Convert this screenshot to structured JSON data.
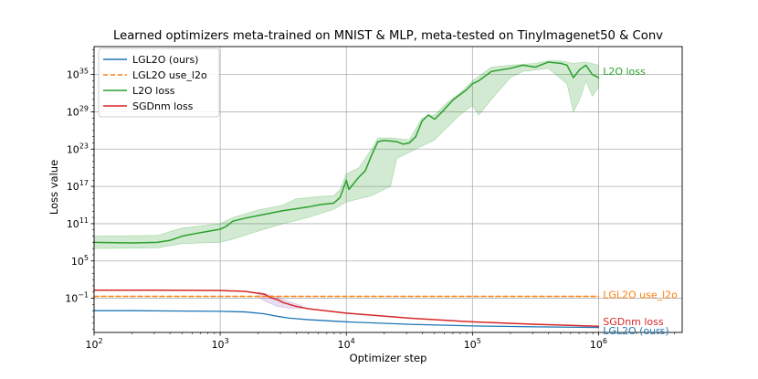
{
  "chart_data": {
    "type": "line",
    "title": "Learned optimizers meta-trained on MNIST & MLP, meta-tested on TinyImagenet50 & Conv",
    "xlabel": "Optimizer step",
    "ylabel": "Loss value",
    "xscale": "log",
    "yscale": "log",
    "xlim": [
      100,
      4600000
    ],
    "ylim_log10": [
      -6.5,
      39.5
    ],
    "grid": true,
    "legend_position": "top-left",
    "x_ticks": [
      {
        "value": 100,
        "base": "10",
        "exp": "2"
      },
      {
        "value": 1000,
        "base": "10",
        "exp": "3"
      },
      {
        "value": 10000,
        "base": "10",
        "exp": "4"
      },
      {
        "value": 100000,
        "base": "10",
        "exp": "5"
      },
      {
        "value": 1000000,
        "base": "10",
        "exp": "6"
      }
    ],
    "y_ticks": [
      {
        "log10": -1,
        "base": "10",
        "exp": "−1"
      },
      {
        "log10": 5,
        "base": "10",
        "exp": "5"
      },
      {
        "log10": 11,
        "base": "10",
        "exp": "11"
      },
      {
        "log10": 17,
        "base": "10",
        "exp": "17"
      },
      {
        "log10": 23,
        "base": "10",
        "exp": "23"
      },
      {
        "log10": 29,
        "base": "10",
        "exp": "29"
      },
      {
        "log10": 35,
        "base": "10",
        "exp": "35"
      }
    ],
    "series": [
      {
        "name": "LGL2O (ours)",
        "color": "#1f77b4",
        "style": "solid",
        "end_label": "LGL2O (ours)",
        "points_log10": [
          [
            2,
            -3.0
          ],
          [
            2.3,
            -3.0
          ],
          [
            2.6,
            -3.05
          ],
          [
            3.0,
            -3.1
          ],
          [
            3.2,
            -3.2
          ],
          [
            3.35,
            -3.5
          ],
          [
            3.45,
            -3.9
          ],
          [
            3.55,
            -4.2
          ],
          [
            3.7,
            -4.45
          ],
          [
            4.0,
            -4.8
          ],
          [
            4.5,
            -5.2
          ],
          [
            5.0,
            -5.45
          ],
          [
            5.5,
            -5.6
          ],
          [
            6.0,
            -5.7
          ]
        ]
      },
      {
        "name": "LGL2O use_l2o",
        "color": "#ff7f0e",
        "style": "dashed",
        "end_label": "LGL2O use_l2o",
        "points_log10": [
          [
            2,
            -0.7
          ],
          [
            6.0,
            -0.7
          ]
        ]
      },
      {
        "name": "L2O loss",
        "color": "#2ca02c",
        "style": "solid",
        "end_label": "L2O loss",
        "points_log10": [
          [
            2,
            8.0
          ],
          [
            2.3,
            7.9
          ],
          [
            2.5,
            8.0
          ],
          [
            2.6,
            8.3
          ],
          [
            2.7,
            9.0
          ],
          [
            2.8,
            9.4
          ],
          [
            3.0,
            10.1
          ],
          [
            3.05,
            10.6
          ],
          [
            3.1,
            11.4
          ],
          [
            3.2,
            11.9
          ],
          [
            3.4,
            12.7
          ],
          [
            3.5,
            13.1
          ],
          [
            3.6,
            13.4
          ],
          [
            3.7,
            13.7
          ],
          [
            3.8,
            14.1
          ],
          [
            3.9,
            14.3
          ],
          [
            3.95,
            15.2
          ],
          [
            4.0,
            18.0
          ],
          [
            4.02,
            16.5
          ],
          [
            4.1,
            18.5
          ],
          [
            4.15,
            19.5
          ],
          [
            4.2,
            22.0
          ],
          [
            4.25,
            24.2
          ],
          [
            4.3,
            24.4
          ],
          [
            4.4,
            24.2
          ],
          [
            4.45,
            23.8
          ],
          [
            4.5,
            24.0
          ],
          [
            4.55,
            25.0
          ],
          [
            4.6,
            27.5
          ],
          [
            4.65,
            28.5
          ],
          [
            4.7,
            27.8
          ],
          [
            4.75,
            28.8
          ],
          [
            4.85,
            31.0
          ],
          [
            4.95,
            32.5
          ],
          [
            5.0,
            33.5
          ],
          [
            5.05,
            34.0
          ],
          [
            5.15,
            35.5
          ],
          [
            5.3,
            36.0
          ],
          [
            5.4,
            36.5
          ],
          [
            5.5,
            36.2
          ],
          [
            5.6,
            37.0
          ],
          [
            5.7,
            36.8
          ],
          [
            5.75,
            36.5
          ],
          [
            5.8,
            34.5
          ],
          [
            5.85,
            35.8
          ],
          [
            5.9,
            36.5
          ],
          [
            5.95,
            35.0
          ],
          [
            6.0,
            34.5
          ]
        ]
      },
      {
        "name": "SGDnm loss",
        "color": "#d62728",
        "style": "solid",
        "end_label": "SGDnm loss",
        "points_log10": [
          [
            2,
            0.3
          ],
          [
            2.5,
            0.3
          ],
          [
            3.0,
            0.25
          ],
          [
            3.2,
            0.1
          ],
          [
            3.35,
            -0.35
          ],
          [
            3.4,
            -0.9
          ],
          [
            3.45,
            -1.2
          ],
          [
            3.5,
            -1.7
          ],
          [
            3.6,
            -2.3
          ],
          [
            3.7,
            -2.7
          ],
          [
            4.0,
            -3.4
          ],
          [
            4.5,
            -4.2
          ],
          [
            5.0,
            -4.8
          ],
          [
            5.5,
            -5.2
          ],
          [
            6.0,
            -5.5
          ]
        ]
      }
    ],
    "bands": [
      {
        "series": "L2O loss",
        "color": "#2ca02c",
        "upper_log10": [
          [
            2,
            9.0
          ],
          [
            2.5,
            9.1
          ],
          [
            2.7,
            10.3
          ],
          [
            3.0,
            11.0
          ],
          [
            3.1,
            12.0
          ],
          [
            3.3,
            13.2
          ],
          [
            3.5,
            14.0
          ],
          [
            3.6,
            15.0
          ],
          [
            3.8,
            15.4
          ],
          [
            3.9,
            15.5
          ],
          [
            3.95,
            16.5
          ],
          [
            4.0,
            19.0
          ],
          [
            4.1,
            20.0
          ],
          [
            4.2,
            23.0
          ],
          [
            4.25,
            24.8
          ],
          [
            4.35,
            24.8
          ],
          [
            4.5,
            24.5
          ],
          [
            4.6,
            28.0
          ],
          [
            4.7,
            28.5
          ],
          [
            4.8,
            30.5
          ],
          [
            4.9,
            32.0
          ],
          [
            5.0,
            34.0
          ],
          [
            5.15,
            36.2
          ],
          [
            5.3,
            36.5
          ],
          [
            5.5,
            36.8
          ],
          [
            5.6,
            37.2
          ],
          [
            5.7,
            37.2
          ],
          [
            5.8,
            36.8
          ],
          [
            5.9,
            37.0
          ],
          [
            6.0,
            36.5
          ]
        ],
        "lower_log10": [
          [
            2,
            7.0
          ],
          [
            2.5,
            7.1
          ],
          [
            2.7,
            7.8
          ],
          [
            3.0,
            8.0
          ],
          [
            3.1,
            8.5
          ],
          [
            3.3,
            9.8
          ],
          [
            3.5,
            11.0
          ],
          [
            3.7,
            12.0
          ],
          [
            3.9,
            13.3
          ],
          [
            4.0,
            14.5
          ],
          [
            4.1,
            15.0
          ],
          [
            4.2,
            15.5
          ],
          [
            4.35,
            17.0
          ],
          [
            4.4,
            21.5
          ],
          [
            4.5,
            22.5
          ],
          [
            4.6,
            23.5
          ],
          [
            4.7,
            24.5
          ],
          [
            4.8,
            26.5
          ],
          [
            4.9,
            28.5
          ],
          [
            5.0,
            30.0
          ],
          [
            5.05,
            28.5
          ],
          [
            5.15,
            31.0
          ],
          [
            5.3,
            34.5
          ],
          [
            5.4,
            35.5
          ],
          [
            5.6,
            36.0
          ],
          [
            5.75,
            33.5
          ],
          [
            5.8,
            29.0
          ],
          [
            5.85,
            31.0
          ],
          [
            5.9,
            34.0
          ],
          [
            5.95,
            31.5
          ],
          [
            6.0,
            33.0
          ]
        ]
      },
      {
        "series": "SGDnm loss",
        "color": "#9467bd",
        "upper_log10": [
          [
            3.3,
            0.0
          ],
          [
            3.35,
            -0.2
          ],
          [
            3.45,
            -0.8
          ],
          [
            3.55,
            -1.6
          ],
          [
            3.65,
            -2.2
          ]
        ],
        "lower_log10": [
          [
            3.3,
            -0.8
          ],
          [
            3.35,
            -1.4
          ],
          [
            3.45,
            -2.3
          ],
          [
            3.55,
            -2.6
          ],
          [
            3.65,
            -2.6
          ]
        ]
      }
    ],
    "legend": [
      {
        "label": "LGL2O (ours)",
        "color": "#1f77b4",
        "style": "solid"
      },
      {
        "label": "LGL2O use_l2o",
        "color": "#ff7f0e",
        "style": "dashed"
      },
      {
        "label": "L2O loss",
        "color": "#2ca02c",
        "style": "solid"
      },
      {
        "label": "SGDnm loss",
        "color": "#d62728",
        "style": "solid"
      }
    ]
  }
}
